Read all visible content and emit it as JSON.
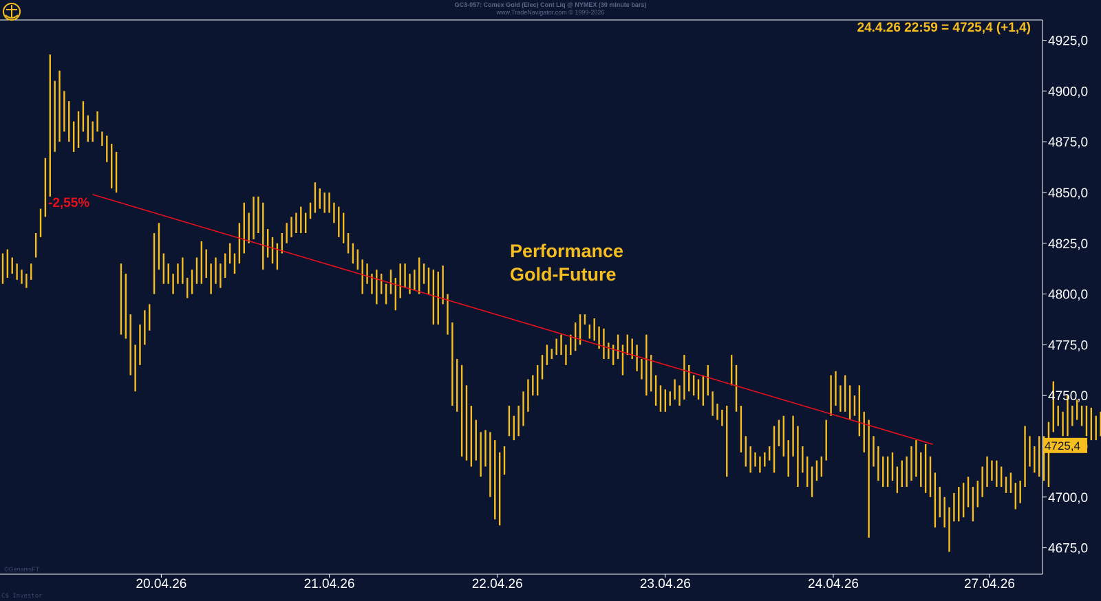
{
  "header": {
    "line1": "GC3-057: Comex Gold (Elec) Cont Liq @ NYMEX (30 minute bars)",
    "line2": "www.TradeNavigator.com © 1999-2026"
  },
  "footer": {
    "corner_label": "C$ Investor",
    "copyright": "©GenanisFT"
  },
  "colors": {
    "background": "#0b1530",
    "bars": "#f6bd1f",
    "trendline": "#e8101a",
    "axis": "#ffffff"
  },
  "chart_data": {
    "type": "bar",
    "subtype": "ohlc-high-low",
    "title": "Performance\nGold-Future",
    "quote": "24.4.26 22:59 = 4725,4 (+1,4)",
    "last_value_label": "4725,4",
    "trend_annotation": "-2,55%",
    "ylim": [
      4662,
      4935
    ],
    "y_ticks": [
      4675,
      4700,
      4725,
      4750,
      4775,
      4800,
      4825,
      4850,
      4875,
      4900,
      4925
    ],
    "y_tick_labels": [
      "4675,0",
      "4700,0",
      "4725,0",
      "4750,0",
      "4775,0",
      "4800,0",
      "4825,0",
      "4850,0",
      "4875,0",
      "4900,0",
      "4925,0"
    ],
    "x_range": [
      0,
      219.7
    ],
    "x_ticks": [
      {
        "label": "20.04.26",
        "pos": 33.5
      },
      {
        "label": "21.04.26",
        "pos": 69
      },
      {
        "label": "22.04.26",
        "pos": 104.5
      },
      {
        "label": "23.04.26",
        "pos": 140
      },
      {
        "label": "24.04.26",
        "pos": 175.5
      },
      {
        "label": "27.04.26",
        "pos": 208.5
      }
    ],
    "trendline": {
      "from": [
        19,
        4849
      ],
      "to": [
        196.5,
        4726
      ]
    },
    "bars": [
      [
        4820,
        4805
      ],
      [
        4822,
        4808
      ],
      [
        4818,
        4810
      ],
      [
        4815,
        4807
      ],
      [
        4812,
        4805
      ],
      [
        4810,
        4803
      ],
      [
        4815,
        4807
      ],
      [
        4830,
        4818
      ],
      [
        4842,
        4828
      ],
      [
        4867,
        4838
      ],
      [
        4918,
        4848
      ],
      [
        4905,
        4870
      ],
      [
        4910,
        4875
      ],
      [
        4900,
        4880
      ],
      [
        4895,
        4875
      ],
      [
        4885,
        4870
      ],
      [
        4890,
        4872
      ],
      [
        4895,
        4880
      ],
      [
        4888,
        4875
      ],
      [
        4885,
        4875
      ],
      [
        4890,
        4880
      ],
      [
        4880,
        4873
      ],
      [
        4878,
        4865
      ],
      [
        4874,
        4852
      ],
      [
        4870,
        4850
      ],
      [
        4815,
        4780
      ],
      [
        4810,
        4778
      ],
      [
        4790,
        4760
      ],
      [
        4775,
        4752
      ],
      [
        4785,
        4765
      ],
      [
        4792,
        4775
      ],
      [
        4795,
        4782
      ],
      [
        4830,
        4800
      ],
      [
        4835,
        4812
      ],
      [
        4820,
        4805
      ],
      [
        4815,
        4805
      ],
      [
        4810,
        4800
      ],
      [
        4815,
        4805
      ],
      [
        4818,
        4805
      ],
      [
        4808,
        4798
      ],
      [
        4812,
        4800
      ],
      [
        4818,
        4805
      ],
      [
        4826,
        4805
      ],
      [
        4822,
        4808
      ],
      [
        4815,
        4800
      ],
      [
        4818,
        4805
      ],
      [
        4815,
        4803
      ],
      [
        4820,
        4808
      ],
      [
        4825,
        4815
      ],
      [
        4820,
        4810
      ],
      [
        4835,
        4815
      ],
      [
        4845,
        4820
      ],
      [
        4840,
        4825
      ],
      [
        4848,
        4827
      ],
      [
        4848,
        4830
      ],
      [
        4845,
        4812
      ],
      [
        4832,
        4818
      ],
      [
        4828,
        4815
      ],
      [
        4825,
        4812
      ],
      [
        4830,
        4820
      ],
      [
        4835,
        4825
      ],
      [
        4838,
        4828
      ],
      [
        4840,
        4830
      ],
      [
        4843,
        4830
      ],
      [
        4840,
        4830
      ],
      [
        4845,
        4837
      ],
      [
        4855,
        4840
      ],
      [
        4852,
        4842
      ],
      [
        4850,
        4840
      ],
      [
        4850,
        4840
      ],
      [
        4845,
        4835
      ],
      [
        4843,
        4828
      ],
      [
        4840,
        4825
      ],
      [
        4830,
        4820
      ],
      [
        4825,
        4815
      ],
      [
        4822,
        4812
      ],
      [
        4817,
        4800
      ],
      [
        4815,
        4805
      ],
      [
        4810,
        4800
      ],
      [
        4812,
        4795
      ],
      [
        4810,
        4800
      ],
      [
        4805,
        4795
      ],
      [
        4812,
        4800
      ],
      [
        4808,
        4792
      ],
      [
        4815,
        4798
      ],
      [
        4815,
        4803
      ],
      [
        4810,
        4800
      ],
      [
        4812,
        4802
      ],
      [
        4818,
        4800
      ],
      [
        4815,
        4805
      ],
      [
        4813,
        4800
      ],
      [
        4812,
        4785
      ],
      [
        4811,
        4785
      ],
      [
        4814,
        4795
      ],
      [
        4800,
        4780
      ],
      [
        4786,
        4745
      ],
      [
        4768,
        4742
      ],
      [
        4765,
        4720
      ],
      [
        4755,
        4718
      ],
      [
        4745,
        4715
      ],
      [
        4738,
        4718
      ],
      [
        4732,
        4710
      ],
      [
        4733,
        4715
      ],
      [
        4732,
        4700
      ],
      [
        4728,
        4689
      ],
      [
        4722,
        4686
      ],
      [
        4725,
        4711
      ],
      [
        4745,
        4730
      ],
      [
        4740,
        4728
      ],
      [
        4745,
        4730
      ],
      [
        4752,
        4735
      ],
      [
        4758,
        4742
      ],
      [
        4760,
        4750
      ],
      [
        4765,
        4750
      ],
      [
        4770,
        4758
      ],
      [
        4775,
        4765
      ],
      [
        4773,
        4768
      ],
      [
        4778,
        4770
      ],
      [
        4780,
        4770
      ],
      [
        4775,
        4765
      ],
      [
        4780,
        4770
      ],
      [
        4786,
        4772
      ],
      [
        4790,
        4775
      ],
      [
        4790,
        4785
      ],
      [
        4785,
        4778
      ],
      [
        4788,
        4777
      ],
      [
        4784,
        4773
      ],
      [
        4783,
        4768
      ],
      [
        4776,
        4768
      ],
      [
        4775,
        4765
      ],
      [
        4780,
        4768
      ],
      [
        4775,
        4760
      ],
      [
        4780,
        4770
      ],
      [
        4778,
        4768
      ],
      [
        4775,
        4762
      ],
      [
        4768,
        4758
      ],
      [
        4780,
        4750
      ],
      [
        4770,
        4752
      ],
      [
        4760,
        4745
      ],
      [
        4755,
        4742
      ],
      [
        4753,
        4742
      ],
      [
        4752,
        4745
      ],
      [
        4758,
        4748
      ],
      [
        4755,
        4745
      ],
      [
        4770,
        4748
      ],
      [
        4765,
        4752
      ],
      [
        4760,
        4750
      ],
      [
        4758,
        4748
      ],
      [
        4760,
        4745
      ],
      [
        4765,
        4750
      ],
      [
        4752,
        4740
      ],
      [
        4746,
        4738
      ],
      [
        4743,
        4735
      ],
      [
        4745,
        4710
      ],
      [
        4770,
        4755
      ],
      [
        4765,
        4742
      ],
      [
        4745,
        4722
      ],
      [
        4730,
        4715
      ],
      [
        4725,
        4712
      ],
      [
        4722,
        4715
      ],
      [
        4720,
        4712
      ],
      [
        4722,
        4715
      ],
      [
        4725,
        4718
      ],
      [
        4735,
        4712
      ],
      [
        4738,
        4725
      ],
      [
        4740,
        4720
      ],
      [
        4728,
        4710
      ],
      [
        4740,
        4720
      ],
      [
        4735,
        4705
      ],
      [
        4725,
        4712
      ],
      [
        4720,
        4705
      ],
      [
        4715,
        4700
      ],
      [
        4718,
        4708
      ],
      [
        4720,
        4710
      ],
      [
        4738,
        4718
      ],
      [
        4760,
        4740
      ],
      [
        4762,
        4745
      ],
      [
        4755,
        4742
      ],
      [
        4760,
        4742
      ],
      [
        4755,
        4738
      ],
      [
        4750,
        4740
      ],
      [
        4755,
        4730
      ],
      [
        4742,
        4722
      ],
      [
        4738,
        4680
      ],
      [
        4730,
        4715
      ],
      [
        4725,
        4708
      ],
      [
        4720,
        4705
      ],
      [
        4720,
        4705
      ],
      [
        4722,
        4708
      ],
      [
        4715,
        4702
      ],
      [
        4718,
        4705
      ],
      [
        4720,
        4705
      ],
      [
        4725,
        4708
      ],
      [
        4728,
        4710
      ],
      [
        4722,
        4705
      ],
      [
        4726,
        4702
      ],
      [
        4720,
        4700
      ],
      [
        4712,
        4685
      ],
      [
        4705,
        4690
      ],
      [
        4700,
        4685
      ],
      [
        4695,
        4673
      ],
      [
        4702,
        4688
      ],
      [
        4705,
        4688
      ],
      [
        4707,
        4690
      ],
      [
        4710,
        4695
      ],
      [
        4705,
        4688
      ],
      [
        4708,
        4695
      ],
      [
        4715,
        4700
      ],
      [
        4720,
        4705
      ],
      [
        4718,
        4708
      ],
      [
        4718,
        4705
      ],
      [
        4715,
        4705
      ],
      [
        4710,
        4702
      ],
      [
        4712,
        4702
      ],
      [
        4707,
        4694
      ],
      [
        4708,
        4697
      ],
      [
        4735,
        4705
      ],
      [
        4730,
        4715
      ],
      [
        4725,
        4712
      ],
      [
        4730,
        4710
      ],
      [
        4730,
        4708
      ],
      [
        4737,
        4705
      ],
      [
        4757,
        4732
      ],
      [
        4745,
        4735
      ],
      [
        4742,
        4730
      ],
      [
        4750,
        4730
      ],
      [
        4745,
        4735
      ],
      [
        4748,
        4738
      ],
      [
        4745,
        4735
      ],
      [
        4745,
        4730
      ],
      [
        4744,
        4728
      ],
      [
        4740,
        4728
      ],
      [
        4742,
        4730
      ],
      [
        4735,
        4725
      ],
      [
        4732,
        4725
      ],
      [
        4728,
        4720
      ],
      [
        4727,
        4723
      ]
    ]
  }
}
